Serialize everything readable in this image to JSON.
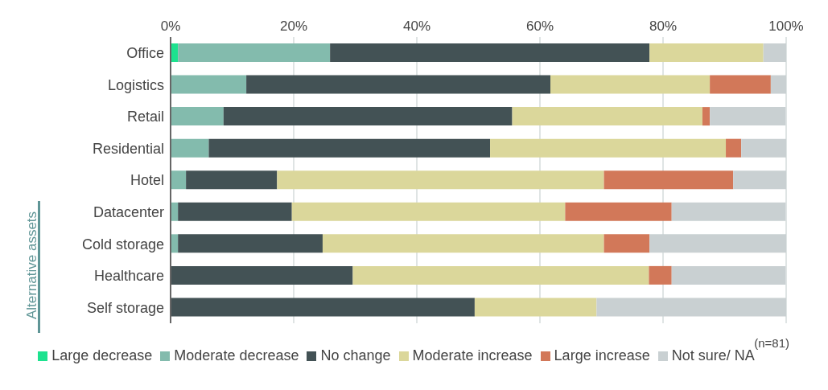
{
  "chart_data": {
    "type": "bar",
    "orientation": "horizontal",
    "stacked": true,
    "categories": [
      "Office",
      "Logistics",
      "Retail",
      "Residential",
      "Hotel",
      "Datacenter",
      "Cold storage",
      "Healthcare",
      "Self storage"
    ],
    "series": [
      {
        "name": "Large decrease",
        "color": "#1de28f",
        "values": [
          1.2,
          0,
          0,
          0,
          0,
          0,
          0,
          0,
          0
        ]
      },
      {
        "name": "Moderate decrease",
        "color": "#83bbad",
        "values": [
          24.7,
          12.3,
          8.6,
          6.2,
          2.5,
          1.2,
          1.2,
          0,
          0
        ]
      },
      {
        "name": "No change",
        "color": "#435255",
        "values": [
          51.9,
          49.4,
          46.9,
          45.7,
          14.8,
          18.5,
          23.5,
          29.6,
          49.4
        ]
      },
      {
        "name": "Moderate increase",
        "color": "#dbd79b",
        "values": [
          18.5,
          25.9,
          30.9,
          38.3,
          53.1,
          44.4,
          45.7,
          48.1,
          19.8
        ]
      },
      {
        "name": "Large increase",
        "color": "#d27859",
        "values": [
          0,
          9.9,
          1.2,
          2.5,
          21.0,
          17.3,
          7.4,
          3.7,
          0
        ]
      },
      {
        "name": "Not sure/ NA",
        "color": "#c9d0d2",
        "values": [
          3.7,
          2.5,
          12.3,
          7.4,
          8.6,
          18.5,
          22.2,
          18.5,
          30.9
        ]
      }
    ],
    "xlim": [
      0,
      100
    ],
    "xticks": [
      {
        "value": 0,
        "label": "0%"
      },
      {
        "value": 20,
        "label": "20%"
      },
      {
        "value": 40,
        "label": "40%"
      },
      {
        "value": 60,
        "label": "60%"
      },
      {
        "value": 80,
        "label": "80%"
      },
      {
        "value": 100,
        "label": "100%"
      }
    ],
    "grid": "x",
    "legend": "bottom",
    "annotations": [
      "Alternative assets",
      "(n=81)"
    ]
  }
}
